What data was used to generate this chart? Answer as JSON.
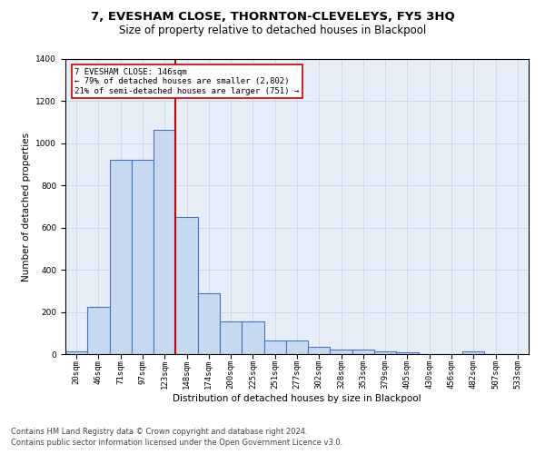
{
  "title": "7, EVESHAM CLOSE, THORNTON-CLEVELEYS, FY5 3HQ",
  "subtitle": "Size of property relative to detached houses in Blackpool",
  "xlabel": "Distribution of detached houses by size in Blackpool",
  "ylabel": "Number of detached properties",
  "footer1": "Contains HM Land Registry data © Crown copyright and database right 2024.",
  "footer2": "Contains public sector information licensed under the Open Government Licence v3.0.",
  "categories": [
    "20sqm",
    "46sqm",
    "71sqm",
    "97sqm",
    "123sqm",
    "148sqm",
    "174sqm",
    "200sqm",
    "225sqm",
    "251sqm",
    "277sqm",
    "302sqm",
    "328sqm",
    "353sqm",
    "379sqm",
    "405sqm",
    "430sqm",
    "456sqm",
    "482sqm",
    "507sqm",
    "533sqm"
  ],
  "values": [
    15,
    225,
    920,
    920,
    1065,
    650,
    290,
    155,
    155,
    65,
    65,
    35,
    20,
    20,
    15,
    10,
    0,
    0,
    15,
    0,
    0
  ],
  "bar_color": "#c6d9f0",
  "bar_edge_color": "#4472c4",
  "highlight_index": 5,
  "highlight_color": "#cc0000",
  "annotation_text": "7 EVESHAM CLOSE: 146sqm\n← 79% of detached houses are smaller (2,802)\n21% of semi-detached houses are larger (751) →",
  "annotation_box_color": "#ffffff",
  "annotation_box_edge": "#cc0000",
  "ylim": [
    0,
    1400
  ],
  "yticks": [
    0,
    200,
    400,
    600,
    800,
    1000,
    1200,
    1400
  ],
  "grid_color": "#d0d8e8",
  "background_color": "#e8eef8",
  "title_fontsize": 9.5,
  "subtitle_fontsize": 8.5,
  "axis_label_fontsize": 7.5,
  "tick_fontsize": 6.5,
  "annotation_fontsize": 6.5,
  "footer_fontsize": 6.0
}
